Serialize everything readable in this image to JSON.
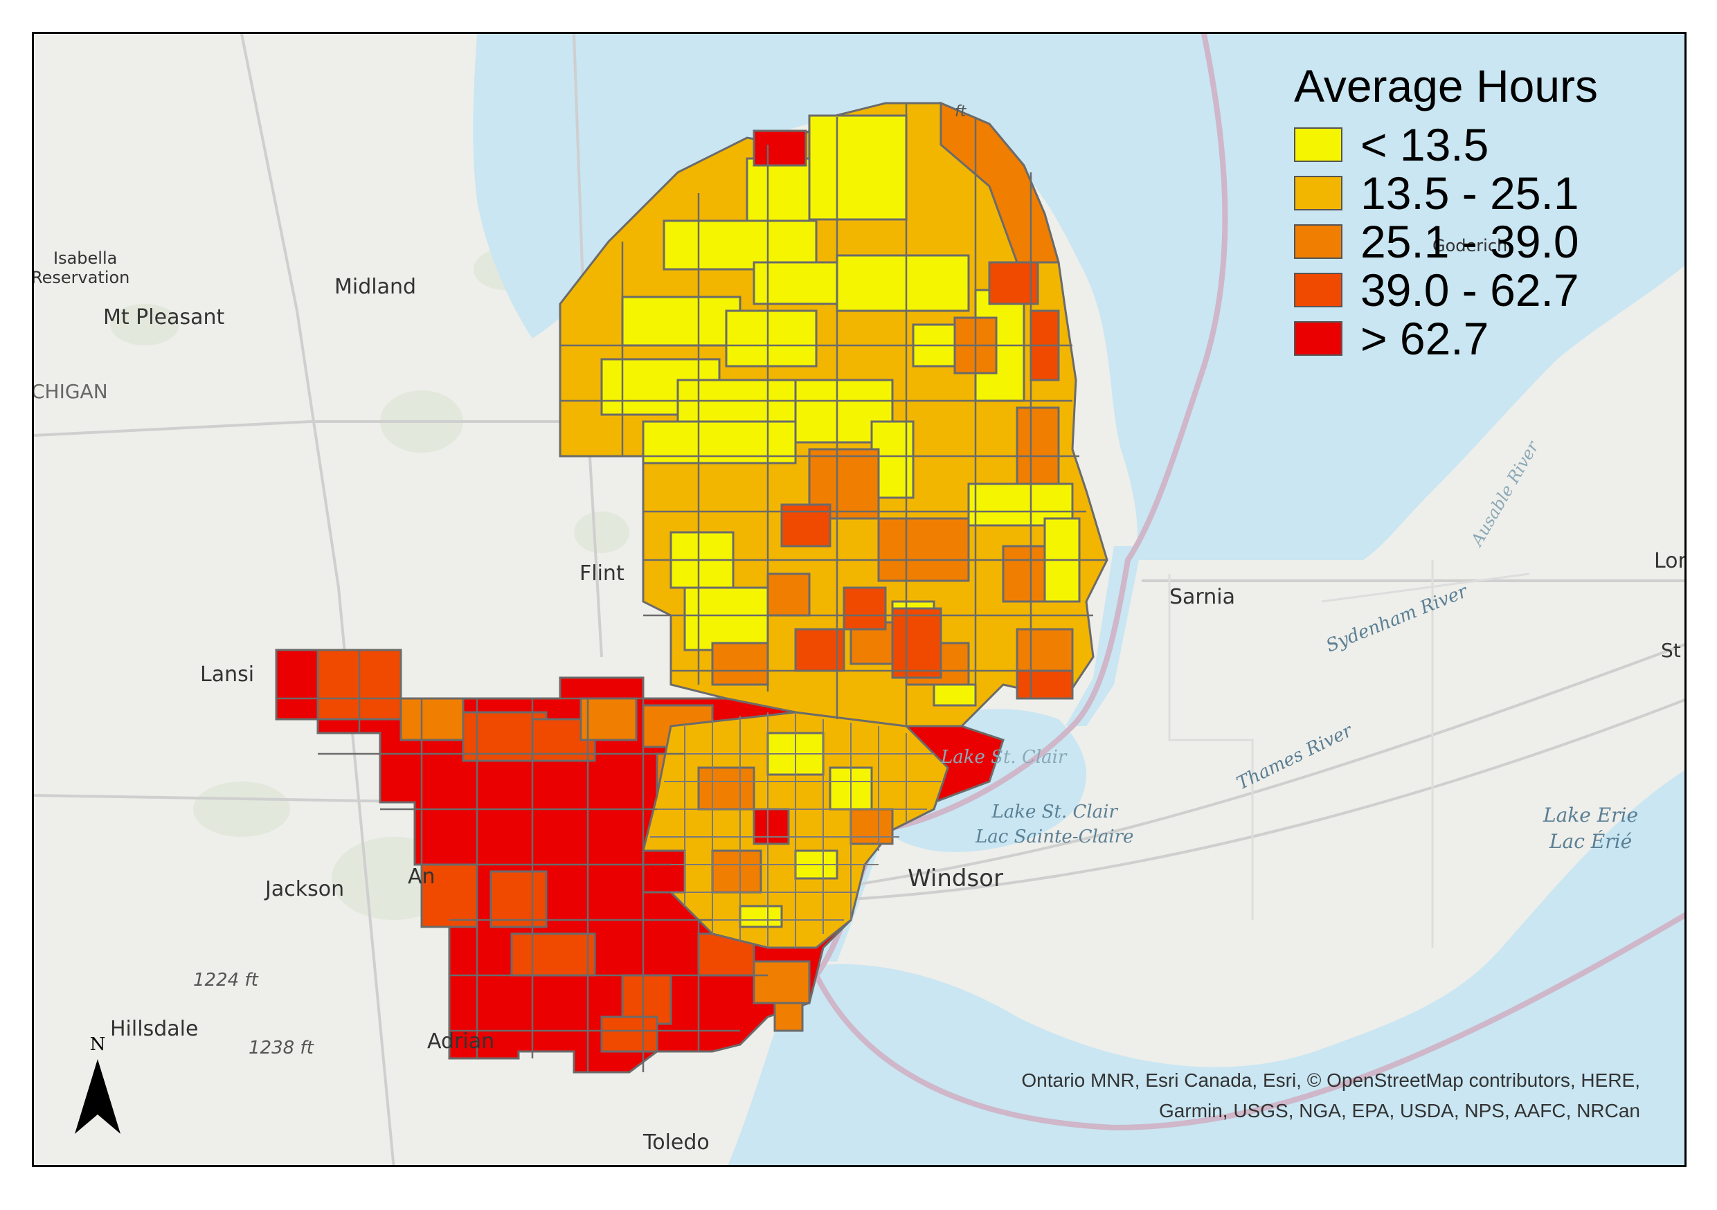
{
  "legend": {
    "title": "Average Hours",
    "classes": [
      {
        "label": "< 13.5",
        "color": "#f5f500"
      },
      {
        "label": "13.5 - 25.1",
        "color": "#f2b600"
      },
      {
        "label": "25.1 - 39.0",
        "color": "#f07e00"
      },
      {
        "label": "39.0 - 62.7",
        "color": "#f04a00"
      },
      {
        "label": "> 62.7",
        "color": "#ea0000"
      }
    ]
  },
  "place_labels": {
    "isabella": "Isabella",
    "reservation": "Reservation",
    "midland": "Midland",
    "mt_pleasant": "Mt Pleasant",
    "michigan": "CHIGAN",
    "flint": "Flint",
    "lansing": "Lansi",
    "jackson": "Jackson",
    "ann_arbor": "An",
    "hillsdale": "Hillsdale",
    "adrian": "Adrian",
    "toledo": "Toledo",
    "windsor": "Windsor",
    "sarnia": "Sarnia",
    "london": "Lon",
    "st": "St",
    "goderich": "Goderich"
  },
  "water_labels": {
    "lake_st_clair_en": "Lake St. Clair",
    "lake_st_clair_fr": "Lac Sainte-Claire",
    "lake_erie_en": "Lake Erie",
    "lake_erie_fr": "Lac Érié",
    "sydenham": "Sydenham River",
    "thames": "Thames River",
    "ausable": "Ausable River",
    "st_clair_partial": "Lake St. Clair"
  },
  "elevation_labels": {
    "e1224": "1224 ft",
    "e1238": "1238 ft",
    "top": "ft"
  },
  "attribution": {
    "line1": "Ontario MNR, Esri Canada, Esri, © OpenStreetMap contributors, HERE,",
    "line2": "Garmin, USGS, NGA, EPA, USDA, NPS, AAFC, NRCan"
  },
  "north_arrow": {
    "letter": "N"
  },
  "colors": {
    "land": "#eeeeea",
    "water": "#c9e6f2",
    "boundary": "#666666",
    "international_border": "#cfb6c8"
  }
}
